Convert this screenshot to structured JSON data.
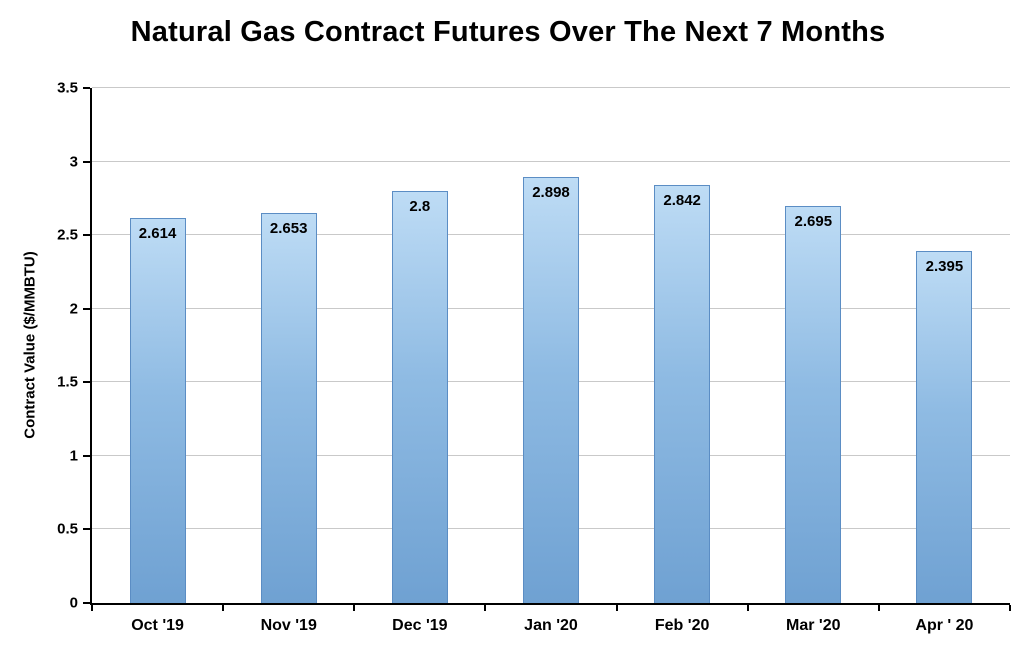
{
  "chart_data": {
    "type": "bar",
    "title": "Natural Gas Contract Futures Over The Next 7 Months",
    "categories": [
      "Oct '19",
      "Nov '19",
      "Dec '19",
      "Jan '20",
      "Feb '20",
      "Mar '20",
      "Apr ' 20"
    ],
    "values": [
      2.614,
      2.653,
      2.8,
      2.898,
      2.842,
      2.695,
      2.395
    ],
    "value_labels": [
      "2.614",
      "2.653",
      "2.8",
      "2.898",
      "2.842",
      "2.695",
      "2.395"
    ],
    "xlabel": "",
    "ylabel": "Contract Value ($/MMBTU)",
    "ylim": [
      0,
      3.5
    ],
    "yticks": [
      0,
      0.5,
      1,
      1.5,
      2,
      2.5,
      3,
      3.5
    ],
    "ytick_labels": [
      "0",
      "0.5",
      "1",
      "1.5",
      "2",
      "2.5",
      "3",
      "3.5"
    ],
    "grid": true,
    "legend": "none",
    "bar_color_top": "#bedcf5",
    "bar_color_bottom": "#6fa1d2",
    "bar_border_color": "#5b8dc4",
    "gridline_color": "#c9c9c9"
  }
}
